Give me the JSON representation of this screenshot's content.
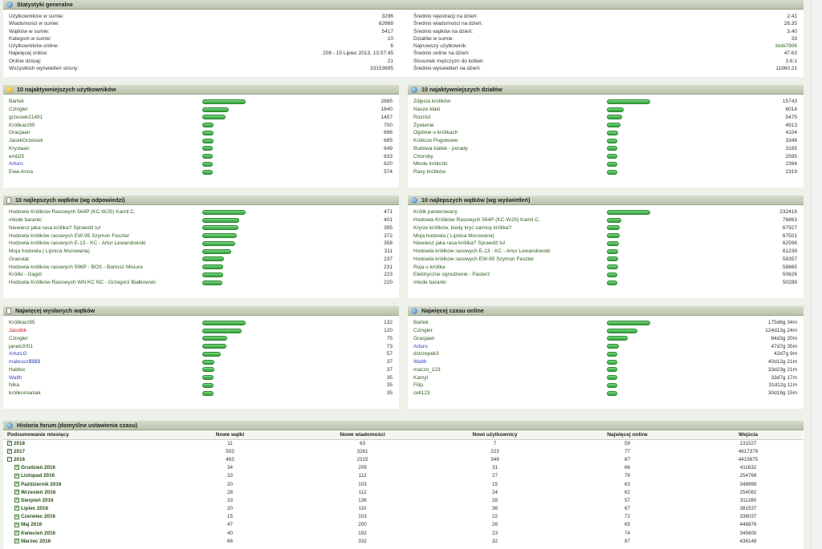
{
  "general": {
    "title": "Statystyki generalne",
    "left": [
      {
        "k": "Użytkowników w sumie:",
        "v": "3296"
      },
      {
        "k": "Wiadomości w sumie:",
        "v": "62668"
      },
      {
        "k": "Wątków w sumie:",
        "v": "5417"
      },
      {
        "k": "Kategorii w sumie:",
        "v": "10"
      },
      {
        "k": "Użytkowników online:",
        "v": "6"
      },
      {
        "k": "Najwięcej online:",
        "v": "208 - 15 Lipiec 2013, 13:07:45"
      },
      {
        "k": "Online dzisiaj:",
        "v": "21"
      },
      {
        "k": "Wszystkich wyświetleń strony:",
        "v": "33153695"
      }
    ],
    "right": [
      {
        "k": "Średnio rejestracji na dzień:",
        "v": "2.41"
      },
      {
        "k": "Średnio wiadomości na dzień:",
        "v": "28.35"
      },
      {
        "k": "Średnio wątków na dzień:",
        "v": "3.40"
      },
      {
        "k": "Działów w sumie:",
        "v": "33"
      },
      {
        "k": "Najnowszy użytkownik:",
        "v": "bobi7906"
      },
      {
        "k": "Średnio online na dzień:",
        "v": "47.63"
      },
      {
        "k": "Stosunek mężczyzn do kobiet:",
        "v": "3.6:1"
      },
      {
        "k": "Średnio wyświetleń na dzień:",
        "v": "11960.21"
      }
    ]
  },
  "panels": [
    {
      "title": "10 najaktywniejszych użytkowników",
      "icon": "star-icon",
      "max": 2685,
      "rows": [
        {
          "n": "Bartek",
          "v": "2685",
          "num": 2685
        },
        {
          "n": "Czingler",
          "v": "1640",
          "num": 1640
        },
        {
          "n": "grzesiek21491",
          "v": "1457",
          "num": 1457
        },
        {
          "n": "Królikarz95",
          "v": "700",
          "num": 700
        },
        {
          "n": "Gracjaan",
          "v": "696",
          "num": 696
        },
        {
          "n": "JacekGrzesiuk",
          "v": "685",
          "num": 685
        },
        {
          "n": "Krystaan",
          "v": "649",
          "num": 649
        },
        {
          "n": "emil25",
          "v": "633",
          "num": 633
        },
        {
          "n": "Arturo",
          "v": "620",
          "num": 620,
          "c": "blue"
        },
        {
          "n": "Ewa-Anna",
          "v": "574",
          "num": 574
        }
      ]
    },
    {
      "title": "10 najaktywniejszych działów",
      "icon": "globe-icon",
      "max": 15743,
      "rows": [
        {
          "n": "Zdjęcia królików",
          "v": "15743",
          "num": 15743
        },
        {
          "n": "Nasze kłaki",
          "v": "6014",
          "num": 6014
        },
        {
          "n": "Rozród",
          "v": "5475",
          "num": 5475
        },
        {
          "n": "Żywienie",
          "v": "4913",
          "num": 4913
        },
        {
          "n": "Ogólnie o królikach",
          "v": "4104",
          "num": 4104
        },
        {
          "n": "Królicze Pogotowie",
          "v": "3348",
          "num": 3348
        },
        {
          "n": "Budowa klatek - porady",
          "v": "3165",
          "num": 3165
        },
        {
          "n": "Choroby",
          "v": "2595",
          "num": 2595
        },
        {
          "n": "Młode króliczki",
          "v": "2394",
          "num": 2394
        },
        {
          "n": "Rasy królików",
          "v": "2319",
          "num": 2319
        }
      ]
    },
    {
      "title": "10 najlepszych wątków (wg odpowiedzi)",
      "icon": "doc-icon",
      "max": 471,
      "rows": [
        {
          "n": "Hodowla Królików Rasowych 564P (KC-WJS) Kamil.C.",
          "v": "471",
          "num": 471
        },
        {
          "n": "młode baranki",
          "v": "401",
          "num": 401
        },
        {
          "n": "Niewiesz jaka rasa królika? Sprawdź tu!",
          "v": "395",
          "num": 395
        },
        {
          "n": "Hodowla królików rasowych EW-95 Szymon Feszter",
          "v": "372",
          "num": 372
        },
        {
          "n": "Hodowla królików rasowych E-13 - KC - Artur Lewandowski",
          "v": "358",
          "num": 358
        },
        {
          "n": "Moja hodowla ( Lipnica Murowana)",
          "v": "311",
          "num": 311
        },
        {
          "n": "Granulat",
          "v": "237",
          "num": 237
        },
        {
          "n": "Hodowla królików rasowych 596P - BOS - Bartosz Misiura",
          "v": "231",
          "num": 231
        },
        {
          "n": "Króliki - Gagol",
          "v": "223",
          "num": 223
        },
        {
          "n": "Hodowla Królików Rasowych WN KC NC - Grzegorz Białkowski",
          "v": "220",
          "num": 220
        }
      ]
    },
    {
      "title": "10 najlepszych wątków (wg wyświetleń)",
      "icon": "globe-icon",
      "max": 232418,
      "rows": [
        {
          "n": "Królik panierowany",
          "v": "232418",
          "num": 232418
        },
        {
          "n": "Hodowla Królików Rasowych 564P (KC-WJS) Kamil.C.",
          "v": "76863",
          "num": 76863
        },
        {
          "n": "Krycie królików, kiedy kryć samicę królika?",
          "v": "67927",
          "num": 67927
        },
        {
          "n": "Moja hodowla ( Lipnica Murowana)",
          "v": "67501",
          "num": 67501
        },
        {
          "n": "Niewiesz jaka rasa królika? Sprawdź tu!",
          "v": "62596",
          "num": 62596
        },
        {
          "n": "Hodowla królików rasowych E-13 - KC - Artur Lewandowski",
          "v": "61239",
          "num": 61239
        },
        {
          "n": "Hodowla królików rasowych EW-95 Szymon Feszter",
          "v": "59357",
          "num": 59357
        },
        {
          "n": "Ruja u królika",
          "v": "58865",
          "num": 58865
        },
        {
          "n": "Elektryczne ogrodzenie - Pasterz",
          "v": "50626",
          "num": 50626
        },
        {
          "n": "młode baranki",
          "v": "50289",
          "num": 50289
        }
      ]
    },
    {
      "title": "Najwięcej wysłanych wątków",
      "icon": "doc-icon",
      "max": 132,
      "rows": [
        {
          "n": "Królikarz95",
          "v": "132",
          "num": 132
        },
        {
          "n": "Jacobik",
          "v": "120",
          "num": 120,
          "c": "red"
        },
        {
          "n": "Czingler",
          "v": "75",
          "num": 75
        },
        {
          "n": "janek2001",
          "v": "73",
          "num": 73
        },
        {
          "n": "ArturLG",
          "v": "57",
          "num": 57,
          "c": "blue"
        },
        {
          "n": "mateusz$$$$",
          "v": "37",
          "num": 37,
          "c": "blue"
        },
        {
          "n": "Haldex",
          "v": "37",
          "num": 37
        },
        {
          "n": "Walth",
          "v": "35",
          "num": 35,
          "c": "blue"
        },
        {
          "n": "Nika",
          "v": "35",
          "num": 35
        },
        {
          "n": "królikomaniak",
          "v": "35",
          "num": 35
        }
      ]
    },
    {
      "title": "Najwięcej czasu online",
      "icon": "globe-icon",
      "max": 100,
      "rows": [
        {
          "n": "Bartek",
          "v": "175d6g 34m",
          "num": 100
        },
        {
          "n": "Czingler",
          "v": "124d13g 24m",
          "num": 71
        },
        {
          "n": "Gracjaan",
          "v": "84d3g 20m",
          "num": 48
        },
        {
          "n": "Arturo",
          "v": "47d7g 35m",
          "num": 27,
          "c": "blue"
        },
        {
          "n": "dstrzepek3",
          "v": "42d7g 9m",
          "num": 24
        },
        {
          "n": "Walth",
          "v": "40d12g 21m",
          "num": 23,
          "c": "blue"
        },
        {
          "n": "maczo_123",
          "v": "33d23g 21m",
          "num": 19
        },
        {
          "n": "Kamyl",
          "v": "33d7g 17m",
          "num": 19
        },
        {
          "n": "Filip.",
          "v": "31d12g 11m",
          "num": 18
        },
        {
          "n": "cell123",
          "v": "30d18g 15m",
          "num": 17
        }
      ]
    }
  ],
  "history": {
    "title": "Historia forum (domyślne ustawienia czasu)",
    "headers": [
      "Podsumowanie miesięcy",
      "Nowe wątki",
      "Nowe wiadomości",
      "Nowi użytkownicy",
      "Najwięcej online",
      "Wejścia"
    ],
    "rows": [
      {
        "p": "2018",
        "t": "minus-a",
        "c": [
          "11",
          "63",
          "7",
          "59",
          "131527"
        ],
        "lvl": 0,
        "sym": "+"
      },
      {
        "p": "2017",
        "c": [
          "503",
          "3261",
          "223",
          "77",
          "4617379"
        ],
        "lvl": 0,
        "sym": "+"
      },
      {
        "p": "2016",
        "c": [
          "463",
          "2315",
          "349",
          "87",
          "4415875"
        ],
        "lvl": 0,
        "sym": "−"
      },
      {
        "p": "Grudzień 2016",
        "c": [
          "34",
          "209",
          "31",
          "66",
          "411632"
        ],
        "lvl": 1,
        "sym": "+"
      },
      {
        "p": "Listopad 2016",
        "c": [
          "33",
          "112",
          "27",
          "78",
          "254768"
        ],
        "lvl": 1,
        "sym": "+"
      },
      {
        "p": "Październik 2016",
        "c": [
          "20",
          "103",
          "15",
          "63",
          "348999"
        ],
        "lvl": 1,
        "sym": "+"
      },
      {
        "p": "Wrzesień 2016",
        "c": [
          "28",
          "112",
          "24",
          "62",
          "254082"
        ],
        "lvl": 1,
        "sym": "+"
      },
      {
        "p": "Sierpień 2016",
        "c": [
          "33",
          "136",
          "28",
          "57",
          "311280"
        ],
        "lvl": 1,
        "sym": "+"
      },
      {
        "p": "Lipiec 2016",
        "c": [
          "20",
          "110",
          "36",
          "67",
          "381537"
        ],
        "lvl": 1,
        "sym": "+"
      },
      {
        "p": "Czerwiec 2016",
        "c": [
          "15",
          "103",
          "22",
          "72",
          "336037"
        ],
        "lvl": 1,
        "sym": "+"
      },
      {
        "p": "Maj 2016",
        "c": [
          "47",
          "200",
          "26",
          "65",
          "446876"
        ],
        "lvl": 1,
        "sym": "+"
      },
      {
        "p": "Kwiecień 2016",
        "c": [
          "40",
          "192",
          "23",
          "74",
          "345600"
        ],
        "lvl": 1,
        "sym": "+"
      },
      {
        "p": "Marzec 2016",
        "c": [
          "66",
          "332",
          "32",
          "87",
          "436148"
        ],
        "lvl": 1,
        "sym": "+"
      }
    ]
  }
}
